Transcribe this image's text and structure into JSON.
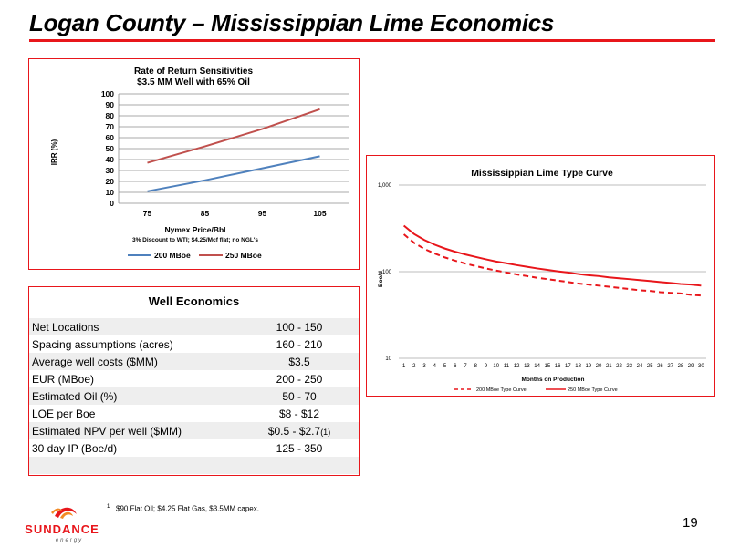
{
  "slide": {
    "title": "Logan County – Mississippian Lime Economics",
    "page_number": "19",
    "footnote_marker": "1",
    "footnote": "$90 Flat Oil; $4.25 Flat Gas, $3.5MM capex.",
    "logo_text": "SUNDANCE",
    "logo_subtext": "energy"
  },
  "colors": {
    "accent_red": "#e8161b",
    "series_blue": "#4f81bd",
    "series_red": "#c0504d",
    "curve_red": "#e8161b"
  },
  "irr_chart": {
    "title_line1": "Rate of Return Sensitivities",
    "title_line2": "$3.5 MM Well with 65% Oil",
    "xlabel": "Nymex Price/Bbl",
    "subnote": "3% Discount to WTI; $4.25/Mcf flat; no NGL's",
    "ylabel": "IRR (%)"
  },
  "type_curve_chart": {
    "title": "Mississippian Lime Type Curve",
    "xlabel": "Months on Production",
    "ylabel": "Boe/d"
  },
  "chart_data": [
    {
      "type": "line",
      "title": "Rate of Return Sensitivities $3.5 MM Well with 65% Oil",
      "xlabel": "Nymex Price/Bbl",
      "ylabel": "IRR (%)",
      "categories": [
        "75",
        "85",
        "95",
        "105"
      ],
      "ylim": [
        0,
        100
      ],
      "yticks": [
        "0",
        "10",
        "20",
        "30",
        "40",
        "50",
        "60",
        "70",
        "80",
        "90",
        "100"
      ],
      "grid": true,
      "legend": "bottom",
      "series": [
        {
          "name": "200 MBoe",
          "values": [
            11,
            21,
            32,
            43
          ],
          "color": "#4f81bd"
        },
        {
          "name": "250 MBoe",
          "values": [
            37,
            52,
            68,
            86
          ],
          "color": "#c0504d"
        }
      ]
    },
    {
      "type": "line",
      "title": "Mississippian Lime Type Curve",
      "xlabel": "Months on Production",
      "ylabel": "Boe/d",
      "log_scale_y": true,
      "ylim": [
        10,
        1000
      ],
      "yticks": [
        "10",
        "100",
        "1,000"
      ],
      "x": [
        1,
        2,
        3,
        4,
        5,
        6,
        7,
        8,
        9,
        10,
        11,
        12,
        13,
        14,
        15,
        16,
        17,
        18,
        19,
        20,
        21,
        22,
        23,
        24,
        25,
        26,
        27,
        28,
        29,
        30
      ],
      "legend": "bottom",
      "series": [
        {
          "name": "200 MBoe Type Curve",
          "style": "dashed",
          "color": "#e8161b",
          "values": [
            270,
            215,
            183,
            162,
            146,
            134,
            124,
            116,
            109,
            103,
            98,
            93,
            89,
            85,
            82,
            79,
            76,
            73,
            71,
            69,
            67,
            65,
            63,
            61,
            60,
            58,
            57,
            56,
            54,
            53
          ]
        },
        {
          "name": "250 MBoe Type Curve",
          "style": "solid",
          "color": "#e8161b",
          "values": [
            340,
            272,
            232,
            205,
            185,
            170,
            158,
            148,
            139,
            131,
            125,
            119,
            114,
            109,
            105,
            101,
            98,
            94,
            91,
            89,
            86,
            84,
            82,
            80,
            78,
            76,
            74,
            72,
            71,
            69
          ]
        }
      ]
    }
  ],
  "well_economics": {
    "header": "Well Economics",
    "rows": [
      {
        "label": "Net Locations",
        "value": "100 - 150"
      },
      {
        "label": "Spacing assumptions (acres)",
        "value": "160 - 210"
      },
      {
        "label": "Average well costs ($MM)",
        "value": "$3.5"
      },
      {
        "label": "EUR (MBoe)",
        "value": "200 - 250"
      },
      {
        "label": "Estimated Oil (%)",
        "value": "50 - 70"
      },
      {
        "label": "LOE per Boe",
        "value": "$8 - $12"
      },
      {
        "label": "Estimated NPV per well ($MM)",
        "value": "$0.5 - $2.7",
        "note": "(1)"
      },
      {
        "label": "30 day IP (Boe/d)",
        "value": "125 - 350"
      },
      {
        "label": "",
        "value": ""
      }
    ]
  }
}
